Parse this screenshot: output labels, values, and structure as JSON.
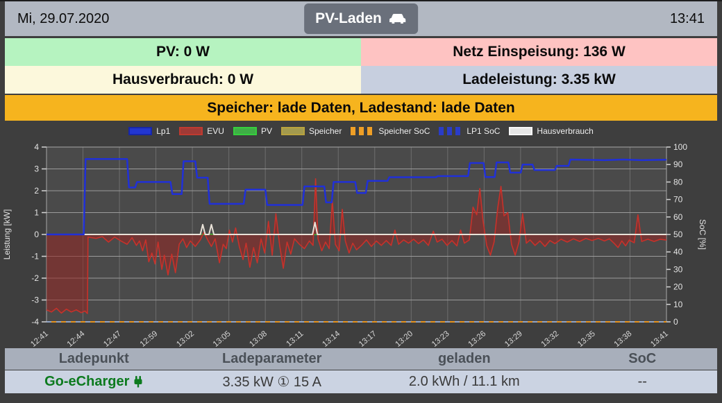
{
  "header": {
    "date": "Mi, 29.07.2020",
    "time": "13:41",
    "title_button": {
      "label": "PV-Laden",
      "icon": "car-icon"
    }
  },
  "status": {
    "pv": {
      "label": "PV: 0 W",
      "bg": "#b6f3c0"
    },
    "netz": {
      "label": "Netz Einspeisung: 136 W",
      "bg": "#fec3c2"
    },
    "hausverbrauch": {
      "label": "Hausverbrauch: 0 W",
      "bg": "#fcf8dc"
    },
    "ladeleistung": {
      "label": "Ladeleistung: 3.35 kW",
      "bg": "#c7cfdf"
    },
    "speicher": {
      "label": "Speicher: lade Daten, Ladestand: lade Daten",
      "bg": "#f6b41e"
    }
  },
  "chart_data": {
    "type": "line",
    "title": "",
    "ylabel_left": "Leistung [kW]",
    "ylabel_right": "SoC [%]",
    "ylim_left": [
      -4,
      4
    ],
    "yticks_left": [
      -4,
      -3,
      -2,
      -1,
      0,
      1,
      2,
      3,
      4
    ],
    "ylim_right": [
      0,
      100
    ],
    "yticks_right": [
      0,
      10,
      20,
      30,
      40,
      50,
      60,
      70,
      80,
      90,
      100
    ],
    "grid": true,
    "legend_position": "top-center",
    "x_ticks": [
      "12:41",
      "12:44",
      "12:47",
      "12:59",
      "13:02",
      "13:05",
      "13:08",
      "13:11",
      "13:14",
      "13:17",
      "13:20",
      "13:23",
      "13:26",
      "13:29",
      "13:32",
      "13:35",
      "13:38",
      "13:41"
    ],
    "legend": [
      {
        "name": "Lp1",
        "style": "solid",
        "fill": "#2236d0",
        "border": "#1726a8"
      },
      {
        "name": "EVU",
        "style": "solid",
        "fill": "#a03a36",
        "border": "#c03a30"
      },
      {
        "name": "PV",
        "style": "solid",
        "fill": "#3fae46",
        "border": "#35d03c"
      },
      {
        "name": "Speicher",
        "style": "solid",
        "fill": "#a39a4e",
        "border": "#b9a33e"
      },
      {
        "name": "Speicher SoC",
        "style": "dashed",
        "fill": "#ef9f26",
        "border": "#ef9f26"
      },
      {
        "name": "LP1 SoC",
        "style": "dashed",
        "fill": "#2a3cc8",
        "border": "#2a3cc8"
      },
      {
        "name": "Hausverbrauch",
        "style": "solid",
        "fill": "#e6e6e6",
        "border": "#f8f8f8"
      }
    ],
    "series": [
      {
        "name": "Speicher",
        "axis": "left",
        "color": "#a39a4e",
        "width": 2,
        "points": [
          [
            0,
            0
          ],
          [
            1,
            0
          ]
        ]
      },
      {
        "name": "PV",
        "axis": "left",
        "color": "#35c13c",
        "width": 2,
        "points": [
          [
            0,
            0
          ],
          [
            1,
            0
          ]
        ]
      },
      {
        "name": "EVU",
        "axis": "left",
        "color": "#c8312a",
        "width": 1.6,
        "area": true,
        "fill": "rgba(150,38,35,0.55)",
        "points": [
          [
            0,
            -3.45
          ],
          [
            0.008,
            -3.55
          ],
          [
            0.016,
            -3.38
          ],
          [
            0.024,
            -3.6
          ],
          [
            0.032,
            -3.42
          ],
          [
            0.04,
            -3.55
          ],
          [
            0.048,
            -3.45
          ],
          [
            0.056,
            -3.58
          ],
          [
            0.062,
            -3.5
          ],
          [
            0.066,
            -3.62
          ],
          [
            0.067,
            -0.12
          ],
          [
            0.08,
            -0.18
          ],
          [
            0.09,
            -0.1
          ],
          [
            0.1,
            -0.35
          ],
          [
            0.11,
            -0.12
          ],
          [
            0.12,
            -0.3
          ],
          [
            0.13,
            -0.45
          ],
          [
            0.138,
            -0.15
          ],
          [
            0.145,
            -0.5
          ],
          [
            0.15,
            -0.3
          ],
          [
            0.155,
            -0.75
          ],
          [
            0.16,
            -0.25
          ],
          [
            0.165,
            -1.25
          ],
          [
            0.17,
            -0.85
          ],
          [
            0.175,
            -1.35
          ],
          [
            0.18,
            -0.35
          ],
          [
            0.186,
            -1.6
          ],
          [
            0.19,
            -0.95
          ],
          [
            0.196,
            -1.85
          ],
          [
            0.202,
            -0.9
          ],
          [
            0.208,
            -1.75
          ],
          [
            0.214,
            -0.45
          ],
          [
            0.22,
            -0.2
          ],
          [
            0.226,
            -0.6
          ],
          [
            0.232,
            -0.3
          ],
          [
            0.24,
            -0.55
          ],
          [
            0.248,
            -0.25
          ],
          [
            0.254,
            0.1
          ],
          [
            0.26,
            -0.25
          ],
          [
            0.266,
            -0.55
          ],
          [
            0.272,
            -0.2
          ],
          [
            0.279,
            -1.3
          ],
          [
            0.285,
            -0.45
          ],
          [
            0.29,
            -0.65
          ],
          [
            0.295,
            0.2
          ],
          [
            0.3,
            -0.35
          ],
          [
            0.305,
            0.3
          ],
          [
            0.311,
            -0.55
          ],
          [
            0.317,
            -1.15
          ],
          [
            0.322,
            -0.4
          ],
          [
            0.328,
            -1.5
          ],
          [
            0.334,
            -0.6
          ],
          [
            0.34,
            -1.3
          ],
          [
            0.346,
            -0.2
          ],
          [
            0.352,
            -0.85
          ],
          [
            0.358,
            0.6
          ],
          [
            0.364,
            -0.95
          ],
          [
            0.37,
            0.95
          ],
          [
            0.376,
            -0.5
          ],
          [
            0.382,
            -1.55
          ],
          [
            0.388,
            -0.35
          ],
          [
            0.394,
            -0.9
          ],
          [
            0.4,
            -0.2
          ],
          [
            0.408,
            -0.45
          ],
          [
            0.416,
            -0.65
          ],
          [
            0.424,
            -0.3
          ],
          [
            0.43,
            -0.5
          ],
          [
            0.434,
            2.55
          ],
          [
            0.438,
            -0.2
          ],
          [
            0.444,
            -0.75
          ],
          [
            0.45,
            -0.35
          ],
          [
            0.456,
            -0.65
          ],
          [
            0.461,
            1.55
          ],
          [
            0.466,
            -0.45
          ],
          [
            0.472,
            -0.75
          ],
          [
            0.477,
            1.15
          ],
          [
            0.482,
            -0.3
          ],
          [
            0.488,
            -0.85
          ],
          [
            0.494,
            -0.4
          ],
          [
            0.5,
            -0.7
          ],
          [
            0.508,
            -0.5
          ],
          [
            0.516,
            -0.25
          ],
          [
            0.524,
            -0.55
          ],
          [
            0.532,
            -0.3
          ],
          [
            0.54,
            -0.5
          ],
          [
            0.548,
            -0.28
          ],
          [
            0.556,
            -0.5
          ],
          [
            0.562,
            0.2
          ],
          [
            0.568,
            -0.45
          ],
          [
            0.576,
            -0.25
          ],
          [
            0.584,
            -0.4
          ],
          [
            0.592,
            -0.22
          ],
          [
            0.6,
            -0.42
          ],
          [
            0.608,
            -0.25
          ],
          [
            0.616,
            -0.5
          ],
          [
            0.624,
            0.15
          ],
          [
            0.63,
            -0.35
          ],
          [
            0.638,
            -0.22
          ],
          [
            0.646,
            -0.5
          ],
          [
            0.654,
            -0.28
          ],
          [
            0.662,
            -0.52
          ],
          [
            0.668,
            0.2
          ],
          [
            0.674,
            -0.4
          ],
          [
            0.682,
            -0.25
          ],
          [
            0.688,
            1.25
          ],
          [
            0.694,
            0.9
          ],
          [
            0.699,
            2.1
          ],
          [
            0.704,
            0.65
          ],
          [
            0.71,
            -0.5
          ],
          [
            0.716,
            -0.95
          ],
          [
            0.722,
            -0.35
          ],
          [
            0.728,
            1.25
          ],
          [
            0.733,
            2.2
          ],
          [
            0.738,
            0.85
          ],
          [
            0.744,
            1.0
          ],
          [
            0.75,
            -0.45
          ],
          [
            0.756,
            -0.95
          ],
          [
            0.762,
            -0.35
          ],
          [
            0.768,
            0.95
          ],
          [
            0.774,
            -0.4
          ],
          [
            0.78,
            -0.25
          ],
          [
            0.788,
            -0.5
          ],
          [
            0.796,
            -0.3
          ],
          [
            0.804,
            -0.55
          ],
          [
            0.812,
            -0.28
          ],
          [
            0.82,
            -0.42
          ],
          [
            0.83,
            -0.22
          ],
          [
            0.84,
            -0.35
          ],
          [
            0.85,
            -0.2
          ],
          [
            0.86,
            -0.32
          ],
          [
            0.87,
            -0.18
          ],
          [
            0.88,
            -0.28
          ],
          [
            0.89,
            -0.18
          ],
          [
            0.9,
            -0.3
          ],
          [
            0.908,
            -0.2
          ],
          [
            0.916,
            -0.42
          ],
          [
            0.922,
            -0.6
          ],
          [
            0.928,
            -0.3
          ],
          [
            0.934,
            -0.52
          ],
          [
            0.94,
            -0.26
          ],
          [
            0.948,
            -0.38
          ],
          [
            0.954,
            0.9
          ],
          [
            0.96,
            -0.32
          ],
          [
            0.97,
            -0.22
          ],
          [
            0.98,
            -0.32
          ],
          [
            0.99,
            -0.22
          ],
          [
            1,
            -0.26
          ]
        ]
      },
      {
        "name": "Hausverbrauch",
        "axis": "left",
        "color": "#e9e2d8",
        "width": 2,
        "points": [
          [
            0,
            0
          ],
          [
            0.248,
            0
          ],
          [
            0.252,
            0.45
          ],
          [
            0.256,
            0
          ],
          [
            0.262,
            0
          ],
          [
            0.266,
            0.45
          ],
          [
            0.27,
            0
          ],
          [
            0.429,
            0
          ],
          [
            0.433,
            0.55
          ],
          [
            0.437,
            0
          ],
          [
            1,
            0
          ]
        ]
      },
      {
        "name": "LP1 SoC",
        "axis": "right",
        "color": "#93a5c6",
        "width": 2,
        "dash": "7 7",
        "points": [
          [
            0,
            0
          ],
          [
            1,
            0
          ]
        ]
      },
      {
        "name": "Speicher SoC",
        "axis": "right",
        "color": "#e8941f",
        "width": 2,
        "dash": "7 7",
        "dashoffset": 7,
        "points": [
          [
            0,
            0
          ],
          [
            1,
            0
          ]
        ]
      },
      {
        "name": "Lp1",
        "axis": "left",
        "color": "#2030d8",
        "width": 2.5,
        "points": [
          [
            0,
            0
          ],
          [
            0.06,
            0
          ],
          [
            0.063,
            3.45
          ],
          [
            0.13,
            3.45
          ],
          [
            0.133,
            2.15
          ],
          [
            0.143,
            2.15
          ],
          [
            0.146,
            2.4
          ],
          [
            0.2,
            2.4
          ],
          [
            0.203,
            1.85
          ],
          [
            0.218,
            1.85
          ],
          [
            0.221,
            3.35
          ],
          [
            0.24,
            3.35
          ],
          [
            0.243,
            2.6
          ],
          [
            0.26,
            2.6
          ],
          [
            0.263,
            1.4
          ],
          [
            0.318,
            1.4
          ],
          [
            0.321,
            2.05
          ],
          [
            0.353,
            2.05
          ],
          [
            0.356,
            1.35
          ],
          [
            0.413,
            1.35
          ],
          [
            0.416,
            2.2
          ],
          [
            0.448,
            2.2
          ],
          [
            0.451,
            1.47
          ],
          [
            0.46,
            1.47
          ],
          [
            0.463,
            2.4
          ],
          [
            0.498,
            2.4
          ],
          [
            0.501,
            1.9
          ],
          [
            0.515,
            1.9
          ],
          [
            0.518,
            2.45
          ],
          [
            0.55,
            2.45
          ],
          [
            0.553,
            2.62
          ],
          [
            0.628,
            2.62
          ],
          [
            0.631,
            2.67
          ],
          [
            0.68,
            2.67
          ],
          [
            0.683,
            3.27
          ],
          [
            0.705,
            3.27
          ],
          [
            0.708,
            2.63
          ],
          [
            0.723,
            2.63
          ],
          [
            0.726,
            3.3
          ],
          [
            0.745,
            3.3
          ],
          [
            0.748,
            2.83
          ],
          [
            0.765,
            2.83
          ],
          [
            0.768,
            3.2
          ],
          [
            0.784,
            3.2
          ],
          [
            0.787,
            2.95
          ],
          [
            0.82,
            2.95
          ],
          [
            0.823,
            3.14
          ],
          [
            0.842,
            3.14
          ],
          [
            0.845,
            3.43
          ],
          [
            0.9,
            3.4
          ],
          [
            0.93,
            3.43
          ],
          [
            0.96,
            3.4
          ],
          [
            1,
            3.42
          ]
        ]
      }
    ]
  },
  "table": {
    "headers": [
      "Ladepunkt",
      "Ladeparameter",
      "geladen",
      "SoC"
    ],
    "rows": [
      {
        "ladepunkt": "Go-eCharger",
        "ladeparameter": "3.35 kW ① 15 A",
        "geladen": "2.0 kWh / 11.1 km",
        "soc": "--"
      }
    ]
  }
}
